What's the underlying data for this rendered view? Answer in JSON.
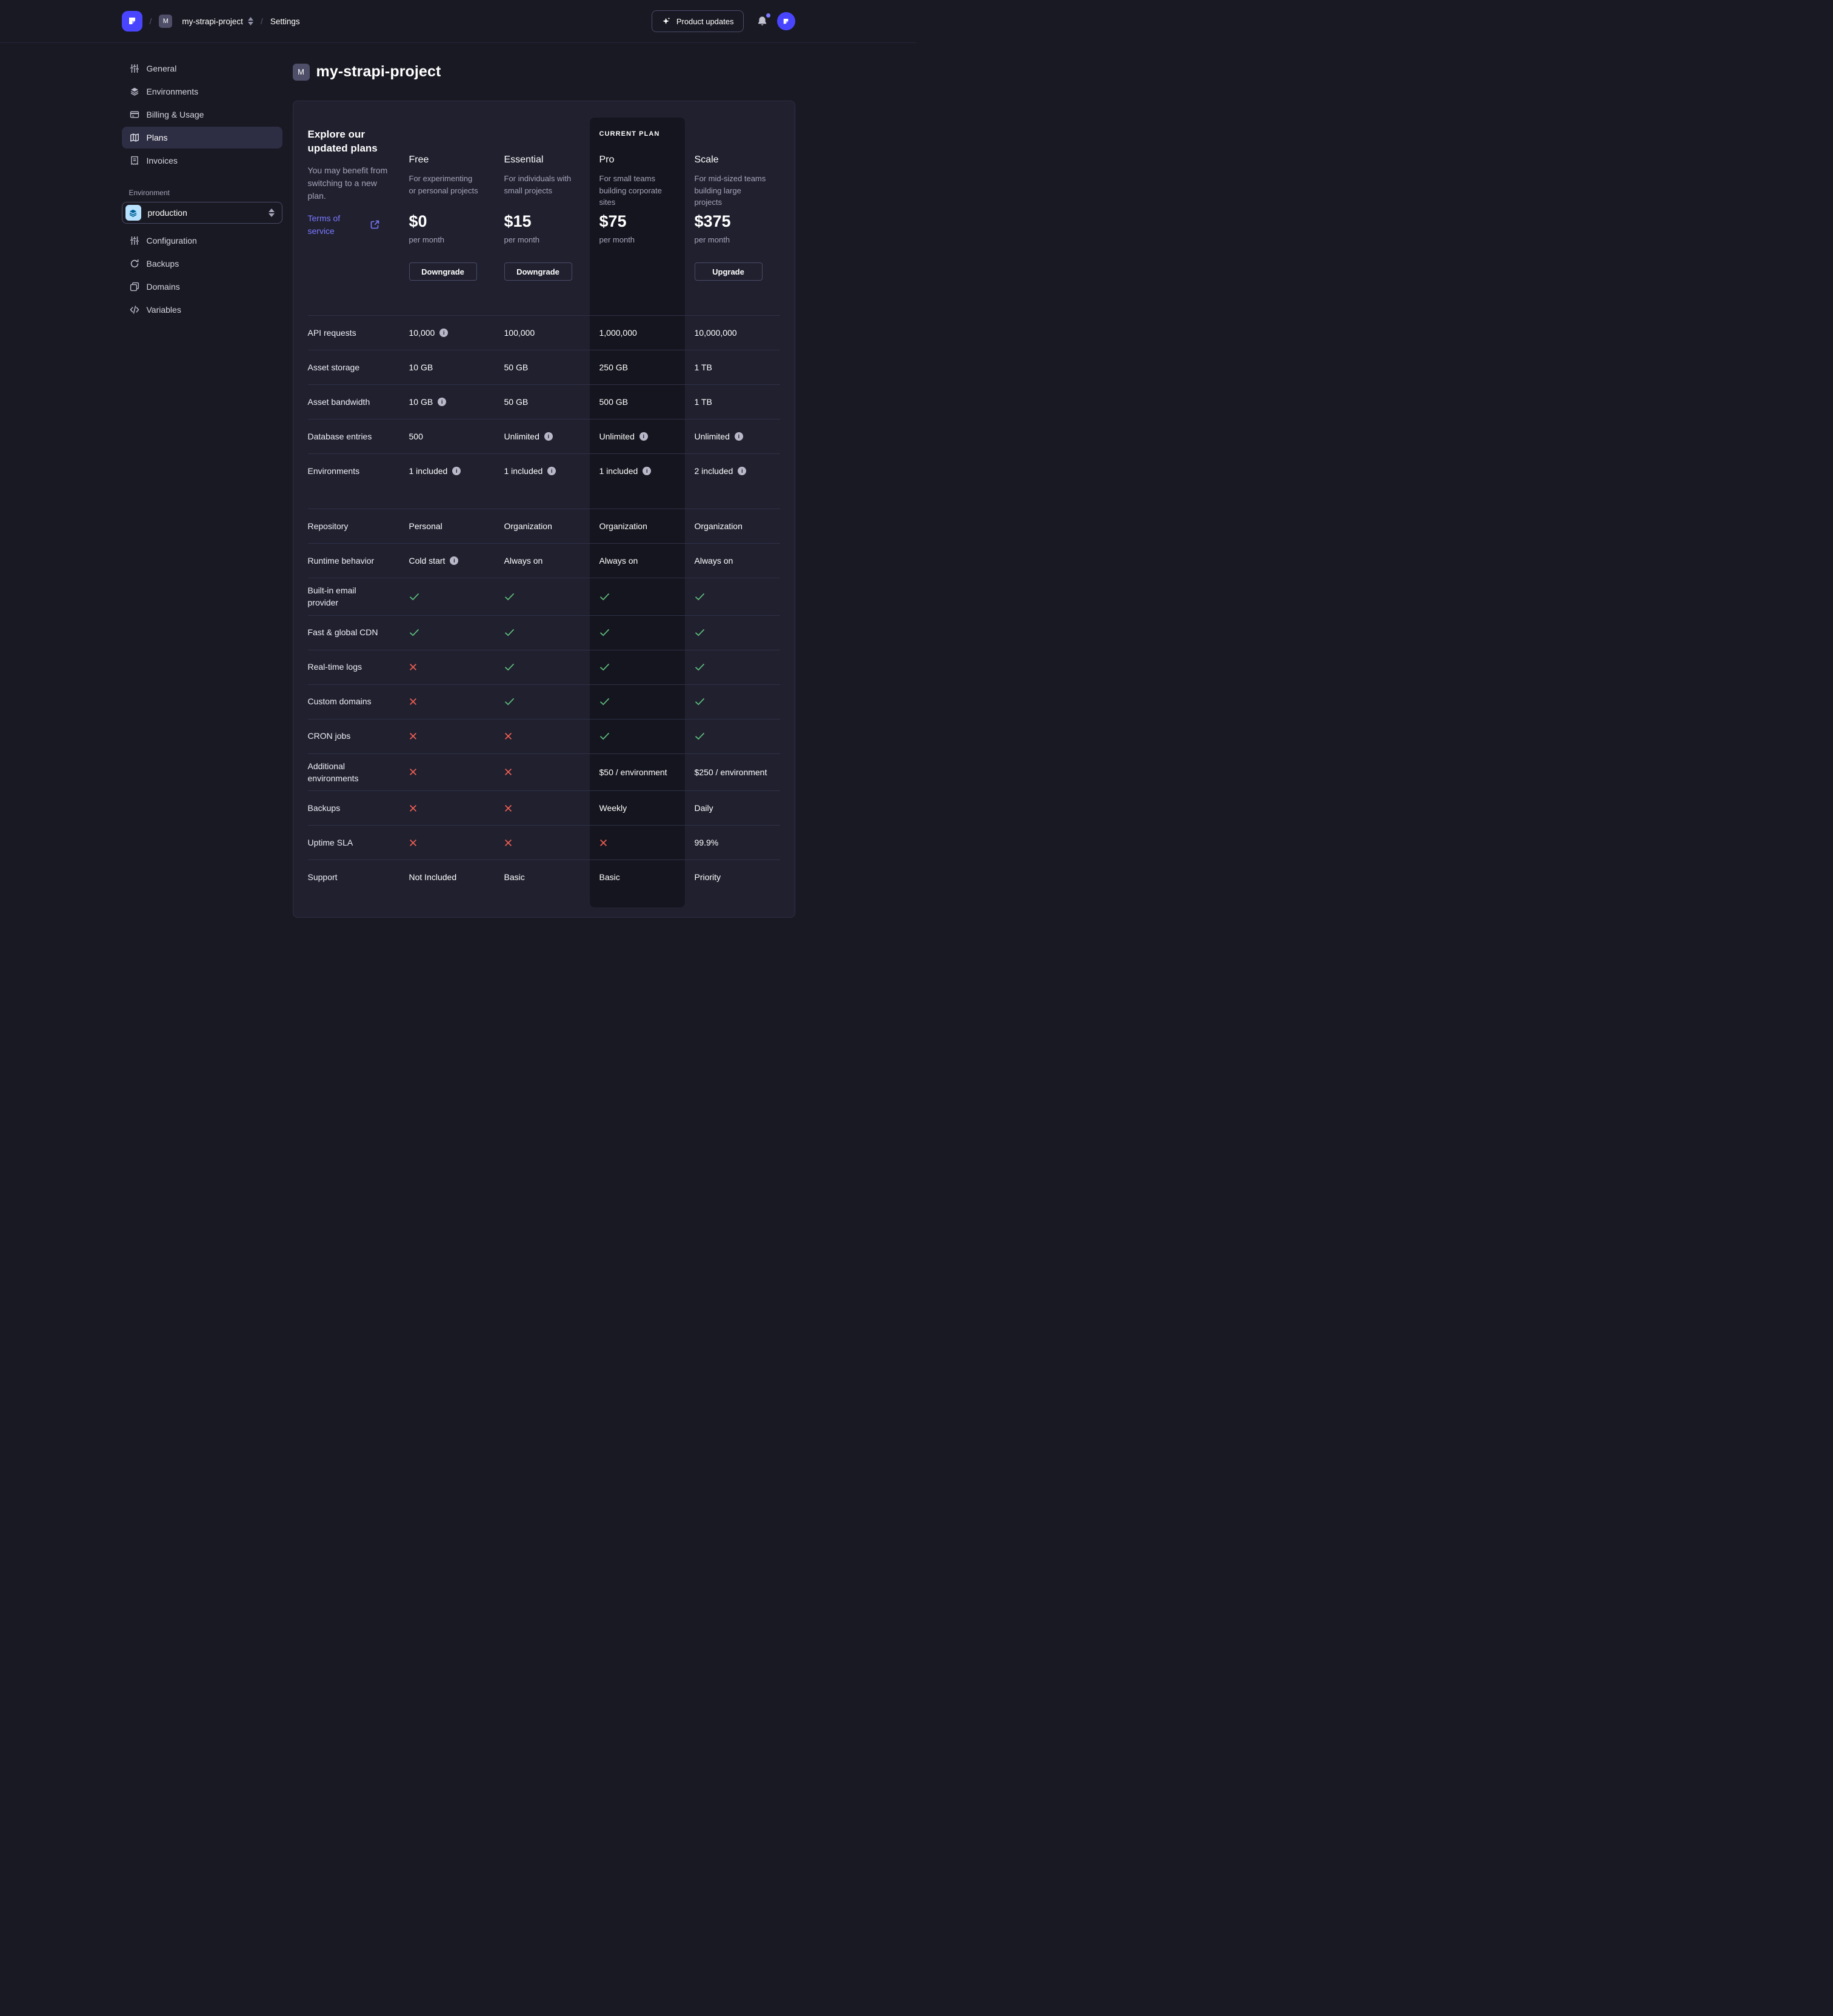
{
  "colors": {
    "accent": "#4945ff",
    "link": "#7b79ff",
    "success": "#5fc27e",
    "danger": "#ee5e52"
  },
  "header": {
    "breadcrumb": {
      "project_initial": "M",
      "project": "my-strapi-project",
      "section": "Settings",
      "separator": "/"
    },
    "product_updates_label": "Product updates"
  },
  "sidebar": {
    "items": [
      {
        "label": "General",
        "icon": "sliders-icon",
        "active": false
      },
      {
        "label": "Environments",
        "icon": "layers-icon",
        "active": false
      },
      {
        "label": "Billing & Usage",
        "icon": "credit-card-icon",
        "active": false
      },
      {
        "label": "Plans",
        "icon": "map-icon",
        "active": true
      },
      {
        "label": "Invoices",
        "icon": "invoice-icon",
        "active": false
      }
    ],
    "environment_label": "Environment",
    "environment_select": {
      "value": "production",
      "icon": "layers-icon"
    },
    "environment_items": [
      {
        "label": "Configuration",
        "icon": "sliders-icon",
        "active": false
      },
      {
        "label": "Backups",
        "icon": "refresh-icon",
        "active": false
      },
      {
        "label": "Domains",
        "icon": "windows-icon",
        "active": false
      },
      {
        "label": "Variables",
        "icon": "code-icon",
        "active": false
      }
    ]
  },
  "main": {
    "project_initial": "M",
    "title": "my-strapi-project",
    "intro": {
      "heading": "Explore our updated plans",
      "subheading": "You may benefit from switching to a new plan.",
      "terms_link": "Terms of service"
    },
    "current_plan_label": "CURRENT PLAN",
    "plans": [
      {
        "name": "Free",
        "description": "For experimenting or personal projects",
        "price": "$0",
        "period": "per month",
        "button": "Downgrade",
        "current": false
      },
      {
        "name": "Essential",
        "description": "For individuals with small projects",
        "price": "$15",
        "period": "per month",
        "button": "Downgrade",
        "current": false
      },
      {
        "name": "Pro",
        "description": "For small teams building corporate sites",
        "price": "$75",
        "period": "per month",
        "button": null,
        "current": true
      },
      {
        "name": "Scale",
        "description": "For mid-sized teams building large projects",
        "price": "$375",
        "period": "per month",
        "button": "Upgrade",
        "current": false
      }
    ],
    "table": {
      "rows": [
        {
          "label": "API requests",
          "values": [
            {
              "text": "10,000",
              "info": true
            },
            {
              "text": "100,000"
            },
            {
              "text": "1,000,000"
            },
            {
              "text": "10,000,000"
            }
          ]
        },
        {
          "label": "Asset storage",
          "values": [
            {
              "text": "10 GB"
            },
            {
              "text": "50 GB"
            },
            {
              "text": "250 GB"
            },
            {
              "text": "1 TB"
            }
          ]
        },
        {
          "label": "Asset bandwidth",
          "values": [
            {
              "text": "10 GB",
              "info": true
            },
            {
              "text": "50 GB"
            },
            {
              "text": "500 GB"
            },
            {
              "text": "1 TB"
            }
          ]
        },
        {
          "label": "Database entries",
          "values": [
            {
              "text": "500"
            },
            {
              "text": "Unlimited",
              "info": true
            },
            {
              "text": "Unlimited",
              "info": true
            },
            {
              "text": "Unlimited",
              "info": true
            }
          ]
        },
        {
          "label": "Environments",
          "spacer_after": true,
          "values": [
            {
              "text": "1 included",
              "info": true
            },
            {
              "text": "1 included",
              "info": true
            },
            {
              "text": "1 included",
              "info": true
            },
            {
              "text": "2 included",
              "info": true
            }
          ]
        },
        {
          "label": "Repository",
          "values": [
            {
              "text": "Personal"
            },
            {
              "text": "Organization"
            },
            {
              "text": "Organization"
            },
            {
              "text": "Organization"
            }
          ]
        },
        {
          "label": "Runtime behavior",
          "values": [
            {
              "text": "Cold start",
              "info": true
            },
            {
              "text": "Always on"
            },
            {
              "text": "Always on"
            },
            {
              "text": "Always on"
            }
          ]
        },
        {
          "label": "Built-in email provider",
          "values": [
            {
              "icon": "check"
            },
            {
              "icon": "check"
            },
            {
              "icon": "check"
            },
            {
              "icon": "check"
            }
          ]
        },
        {
          "label": "Fast & global CDN",
          "values": [
            {
              "icon": "check"
            },
            {
              "icon": "check"
            },
            {
              "icon": "check"
            },
            {
              "icon": "check"
            }
          ]
        },
        {
          "label": "Real-time logs",
          "values": [
            {
              "icon": "cross"
            },
            {
              "icon": "check"
            },
            {
              "icon": "check"
            },
            {
              "icon": "check"
            }
          ]
        },
        {
          "label": "Custom domains",
          "values": [
            {
              "icon": "cross"
            },
            {
              "icon": "check"
            },
            {
              "icon": "check"
            },
            {
              "icon": "check"
            }
          ]
        },
        {
          "label": "CRON jobs",
          "values": [
            {
              "icon": "cross"
            },
            {
              "icon": "cross"
            },
            {
              "icon": "check"
            },
            {
              "icon": "check"
            }
          ]
        },
        {
          "label": "Additional environments",
          "values": [
            {
              "icon": "cross"
            },
            {
              "icon": "cross"
            },
            {
              "text": "$50 / environment"
            },
            {
              "text": "$250 / environment"
            }
          ]
        },
        {
          "label": "Backups",
          "values": [
            {
              "icon": "cross"
            },
            {
              "icon": "cross"
            },
            {
              "text": "Weekly"
            },
            {
              "text": "Daily"
            }
          ]
        },
        {
          "label": "Uptime SLA",
          "values": [
            {
              "icon": "cross"
            },
            {
              "icon": "cross"
            },
            {
              "icon": "cross"
            },
            {
              "text": "99.9%"
            }
          ]
        },
        {
          "label": "Support",
          "values": [
            {
              "text": "Not Included"
            },
            {
              "text": "Basic"
            },
            {
              "text": "Basic"
            },
            {
              "text": "Priority"
            }
          ]
        }
      ]
    }
  }
}
